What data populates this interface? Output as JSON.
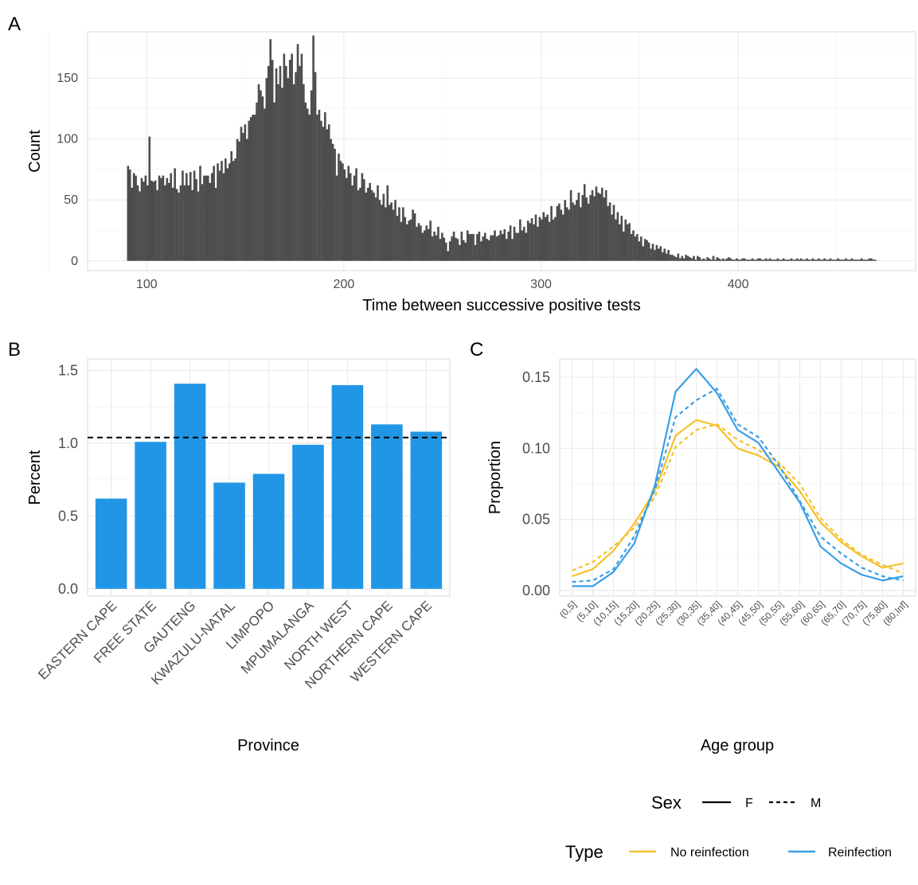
{
  "chart_data": [
    {
      "panel": "A",
      "type": "bar",
      "xlabel": "Time between successive positive tests",
      "ylabel": "Count",
      "xlim": [
        70,
        490
      ],
      "ylim": [
        -8,
        188
      ],
      "x_ticks": [
        100,
        200,
        300,
        400
      ],
      "y_ticks": [
        0,
        50,
        100,
        150
      ],
      "x_start": 90,
      "x_end": 470,
      "bin_width": 1,
      "values": [
        78,
        75,
        60,
        72,
        70,
        62,
        57,
        68,
        65,
        70,
        62,
        102,
        66,
        65,
        66,
        58,
        70,
        68,
        70,
        62,
        68,
        64,
        72,
        60,
        76,
        59,
        56,
        62,
        74,
        62,
        72,
        62,
        73,
        58,
        74,
        67,
        57,
        78,
        63,
        70,
        70,
        70,
        64,
        72,
        78,
        60,
        80,
        74,
        82,
        72,
        84,
        76,
        80,
        90,
        82,
        84,
        100,
        98,
        110,
        105,
        112,
        100,
        115,
        118,
        120,
        120,
        130,
        145,
        140,
        135,
        125,
        150,
        160,
        182,
        165,
        130,
        158,
        145,
        160,
        142,
        170,
        160,
        150,
        165,
        170,
        145,
        155,
        178,
        160,
        170,
        145,
        130,
        125,
        120,
        140,
        185,
        155,
        120,
        124,
        115,
        110,
        122,
        108,
        112,
        100,
        96,
        92,
        70,
        88,
        82,
        80,
        75,
        68,
        78,
        72,
        62,
        70,
        76,
        58,
        60,
        72,
        67,
        56,
        60,
        64,
        58,
        56,
        52,
        62,
        50,
        46,
        55,
        44,
        62,
        46,
        48,
        42,
        50,
        37,
        44,
        32,
        44,
        36,
        30,
        33,
        34,
        42,
        39,
        28,
        31,
        29,
        23,
        25,
        29,
        26,
        33,
        20,
        24,
        21,
        28,
        18,
        23,
        19,
        15,
        8,
        16,
        20,
        24,
        19,
        18,
        13,
        24,
        17,
        15,
        25,
        22,
        22,
        22,
        13,
        22,
        24,
        16,
        20,
        23,
        18,
        17,
        21,
        21,
        25,
        20,
        21,
        25,
        22,
        26,
        18,
        24,
        29,
        18,
        28,
        23,
        23,
        34,
        25,
        28,
        23,
        33,
        31,
        35,
        30,
        38,
        28,
        36,
        34,
        40,
        36,
        38,
        32,
        45,
        34,
        36,
        45,
        47,
        42,
        38,
        50,
        44,
        42,
        58,
        48,
        46,
        50,
        56,
        44,
        54,
        63,
        52,
        47,
        54,
        58,
        53,
        61,
        56,
        55,
        60,
        52,
        58,
        45,
        48,
        38,
        46,
        34,
        40,
        30,
        37,
        24,
        34,
        30,
        31,
        22,
        25,
        20,
        22,
        16,
        20,
        12,
        18,
        17,
        15,
        10,
        14,
        9,
        13,
        10,
        12,
        7,
        10,
        6,
        9,
        5,
        5,
        4,
        3,
        6,
        2,
        4,
        2,
        5,
        4,
        3,
        2,
        4,
        1,
        4,
        3,
        1,
        2,
        1,
        3,
        2,
        1,
        4,
        1,
        3,
        2,
        1,
        2,
        1,
        2,
        3,
        2,
        1,
        1,
        2,
        1,
        1,
        2,
        2,
        1,
        1,
        1,
        2,
        1,
        1,
        2,
        2,
        1,
        1,
        2,
        1,
        2,
        1,
        1,
        1,
        2,
        1,
        1,
        2,
        1,
        1,
        1,
        2,
        1,
        1,
        2,
        1,
        2,
        1,
        1,
        2,
        1,
        1,
        2,
        1,
        1,
        2,
        1,
        1,
        2,
        1,
        1,
        2,
        1,
        1,
        1,
        2,
        1,
        1,
        1,
        2,
        1,
        1,
        2,
        1,
        1,
        1,
        1,
        2,
        1,
        1,
        1,
        2,
        2,
        1,
        1
      ]
    },
    {
      "panel": "B",
      "type": "bar",
      "xlabel": "Province",
      "ylabel": "Percent",
      "ylim": [
        -0.05,
        1.58
      ],
      "y_ticks": [
        0.0,
        0.5,
        1.0,
        1.5
      ],
      "y_tick_labels": [
        "0.0",
        "0.5",
        "1.0",
        "1.5"
      ],
      "categories": [
        "EASTERN CAPE",
        "FREE STATE",
        "GAUTENG",
        "KWAZULU-NATAL",
        "LIMPOPO",
        "MPUMALANGA",
        "NORTH WEST",
        "NORTHERN CAPE",
        "WESTERN CAPE"
      ],
      "values": [
        0.62,
        1.01,
        1.41,
        0.73,
        0.79,
        0.99,
        1.4,
        1.13,
        1.08
      ],
      "reference_line": 1.04,
      "bar_color": "#2296e6"
    },
    {
      "panel": "C",
      "type": "line",
      "xlabel": "Age group",
      "ylabel": "Proportion",
      "ylim": [
        -0.004,
        0.163
      ],
      "y_ticks": [
        0.0,
        0.05,
        0.1,
        0.15
      ],
      "y_tick_labels": [
        "0.00",
        "0.05",
        "0.10",
        "0.15"
      ],
      "categories": [
        "(0,5]",
        "(5,10]",
        "(10,15]",
        "(15,20]",
        "(20,25]",
        "(25,30]",
        "(30,35]",
        "(35,40]",
        "(40,45]",
        "(45,50]",
        "(50,55]",
        "(55,60]",
        "(60,65]",
        "(65,70]",
        "(70,75]",
        "(75,80]",
        "(80,Inf]"
      ],
      "series": [
        {
          "type": "No reinfection",
          "sex": "F",
          "color": "#f5c12a",
          "dash": "solid",
          "values": [
            0.01,
            0.015,
            0.028,
            0.047,
            0.07,
            0.109,
            0.12,
            0.116,
            0.1,
            0.095,
            0.087,
            0.07,
            0.048,
            0.034,
            0.024,
            0.016,
            0.019
          ]
        },
        {
          "type": "No reinfection",
          "sex": "M",
          "color": "#f5c12a",
          "dash": "dashed",
          "values": [
            0.014,
            0.02,
            0.031,
            0.044,
            0.066,
            0.101,
            0.113,
            0.117,
            0.106,
            0.099,
            0.09,
            0.075,
            0.051,
            0.036,
            0.025,
            0.018,
            0.012
          ]
        },
        {
          "type": "Reinfection",
          "sex": "F",
          "color": "#3a9ee6",
          "dash": "solid",
          "values": [
            0.003,
            0.003,
            0.013,
            0.033,
            0.074,
            0.14,
            0.156,
            0.139,
            0.113,
            0.104,
            0.083,
            0.062,
            0.031,
            0.019,
            0.011,
            0.007,
            0.01
          ]
        },
        {
          "type": "Reinfection",
          "sex": "M",
          "color": "#3a9ee6",
          "dash": "dashed",
          "values": [
            0.006,
            0.007,
            0.015,
            0.038,
            0.071,
            0.122,
            0.134,
            0.142,
            0.117,
            0.108,
            0.088,
            0.063,
            0.038,
            0.026,
            0.016,
            0.01,
            0.007
          ]
        }
      ],
      "legend_sex_title": "Sex",
      "legend_sex": [
        "F",
        "M"
      ],
      "legend_type_title": "Type",
      "legend_type": [
        "No reinfection",
        "Reinfection"
      ]
    }
  ],
  "panel_labels": [
    "A",
    "B",
    "C"
  ],
  "colors": {
    "hist": "#4d4d4d",
    "bar": "#2296e6",
    "no_reinfection": "#f5c12a",
    "reinfection": "#3a9ee6"
  }
}
